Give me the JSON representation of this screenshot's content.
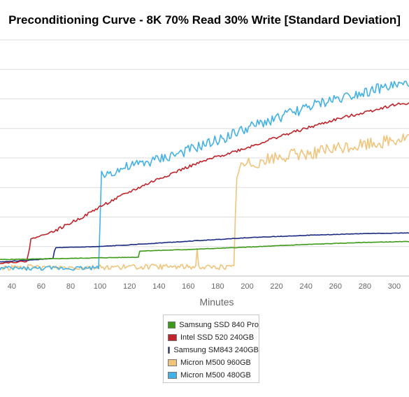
{
  "chart_data": {
    "type": "line",
    "title": "Preconditioning Curve - 8K 70% Read 30% Write [Standard Deviation]",
    "xlabel": "Minutes",
    "ylabel": "",
    "x_tick_labels": [
      "40",
      "60",
      "80",
      "100",
      "120",
      "140",
      "160",
      "180",
      "200",
      "220",
      "240",
      "260",
      "280",
      "300"
    ],
    "xlim": [
      32,
      310
    ],
    "ylim": [
      0,
      8
    ],
    "grid": "horizontal",
    "legend": "bottom-center",
    "series": [
      {
        "name": "Samsung SSD 840 Pro",
        "color": "#3d9a17",
        "points": [
          [
            32,
            0.56
          ],
          [
            60,
            0.58
          ],
          [
            100,
            0.62
          ],
          [
            126,
            0.64
          ],
          [
            127,
            0.84
          ],
          [
            128,
            0.85
          ],
          [
            160,
            0.9
          ],
          [
            200,
            0.98
          ],
          [
            240,
            1.07
          ],
          [
            280,
            1.14
          ],
          [
            310,
            1.17
          ]
        ],
        "noise": 0.02
      },
      {
        "name": "Intel SSD 520 240GB",
        "color": "#c0242a",
        "points": [
          [
            32,
            0.44
          ],
          [
            50,
            0.5
          ],
          [
            52,
            0.92
          ],
          [
            53,
            1.25
          ],
          [
            60,
            1.37
          ],
          [
            70,
            1.55
          ],
          [
            80,
            1.8
          ],
          [
            90,
            2.05
          ],
          [
            100,
            2.35
          ],
          [
            120,
            2.85
          ],
          [
            140,
            3.3
          ],
          [
            160,
            3.7
          ],
          [
            180,
            4.05
          ],
          [
            200,
            4.35
          ],
          [
            220,
            4.7
          ],
          [
            240,
            5.0
          ],
          [
            260,
            5.3
          ],
          [
            280,
            5.55
          ],
          [
            300,
            5.8
          ],
          [
            310,
            5.86
          ]
        ],
        "noise": 0.05
      },
      {
        "name": "Samsung SM843 240GB",
        "color": "#1a2a80",
        "points": [
          [
            32,
            0.48
          ],
          [
            50,
            0.53
          ],
          [
            68,
            0.6
          ],
          [
            69,
            0.85
          ],
          [
            70,
            0.96
          ],
          [
            100,
            1.0
          ],
          [
            120,
            1.06
          ],
          [
            150,
            1.15
          ],
          [
            180,
            1.24
          ],
          [
            200,
            1.3
          ],
          [
            240,
            1.38
          ],
          [
            280,
            1.44
          ],
          [
            310,
            1.46
          ]
        ],
        "noise": 0.02
      },
      {
        "name": "Micron M500 960GB",
        "color": "#f0c47a",
        "points": [
          [
            32,
            0.28
          ],
          [
            60,
            0.3
          ],
          [
            100,
            0.3
          ],
          [
            165,
            0.32
          ],
          [
            166,
            1.0
          ],
          [
            167,
            0.3
          ],
          [
            191,
            0.3
          ],
          [
            192,
            2.0
          ],
          [
            193,
            3.5
          ],
          [
            195,
            3.65
          ],
          [
            200,
            3.8
          ],
          [
            220,
            4.0
          ],
          [
            240,
            4.15
          ],
          [
            260,
            4.3
          ],
          [
            280,
            4.45
          ],
          [
            300,
            4.6
          ],
          [
            310,
            4.7
          ]
        ],
        "noise": 0.22
      },
      {
        "name": "Micron M500 480GB",
        "color": "#42b1e6",
        "points": [
          [
            32,
            0.26
          ],
          [
            60,
            0.26
          ],
          [
            99,
            0.28
          ],
          [
            100,
            2.0
          ],
          [
            101,
            3.4
          ],
          [
            110,
            3.55
          ],
          [
            120,
            3.7
          ],
          [
            140,
            3.95
          ],
          [
            160,
            4.25
          ],
          [
            180,
            4.6
          ],
          [
            200,
            5.0
          ],
          [
            220,
            5.35
          ],
          [
            240,
            5.7
          ],
          [
            260,
            6.0
          ],
          [
            280,
            6.25
          ],
          [
            300,
            6.45
          ],
          [
            310,
            6.5
          ]
        ],
        "noise": 0.18
      }
    ]
  }
}
